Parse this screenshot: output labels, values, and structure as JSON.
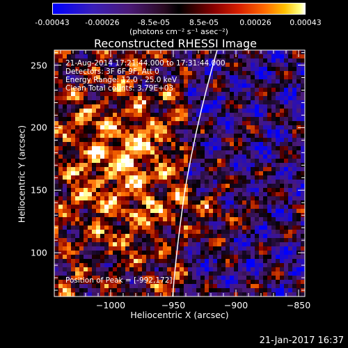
{
  "colorbar": {
    "tick_labels": [
      "-0.00043",
      "-0.00026",
      "-8.5e-05",
      "8.5e-05",
      "0.00026",
      "0.00043"
    ],
    "tick_values": [
      -0.00043,
      -0.00026,
      -8.5e-05,
      8.5e-05,
      0.00026,
      0.00043
    ],
    "units_label": "(photons cm⁻² s⁻¹ asec⁻²)",
    "range": [
      -0.00043,
      0.00043
    ]
  },
  "chart_data": {
    "type": "heatmap",
    "title": "Reconstructed RHESSI Image",
    "xlabel": "Heliocentric X (arcsec)",
    "ylabel": "Heliocentric Y (arcsec)",
    "xlim": [
      -1045,
      -845
    ],
    "ylim": [
      65,
      262
    ],
    "x_ticks": [
      -1000,
      -950,
      -900,
      -850
    ],
    "y_ticks": [
      100,
      150,
      200,
      250
    ],
    "x_tick_labels": [
      "−1000",
      "−950",
      "−900",
      "−850"
    ],
    "y_tick_labels": [
      "100",
      "150",
      "200",
      "250"
    ],
    "peak": [
      -992,
      172
    ],
    "limb_color": "#ffffff",
    "colormap_stops": [
      "#0000ff",
      "#4b1a78",
      "#000000",
      "#8a0000",
      "#ff6a00",
      "#ffff80",
      "#ffffff"
    ],
    "annotations": {
      "time": "21-Aug-2014 17:21:44.000 to 17:31:44.000",
      "detectors": "Detectors: 3F 6F 9F, Att 0",
      "energy": "Energy Range: 12.0 - 25.0 keV",
      "method": "Clean    Total counts: 3.79E+03",
      "peak_label": "Position of Peak = [-992,172]"
    }
  },
  "footer": {
    "date": "21-Jan-2017 16:37"
  }
}
